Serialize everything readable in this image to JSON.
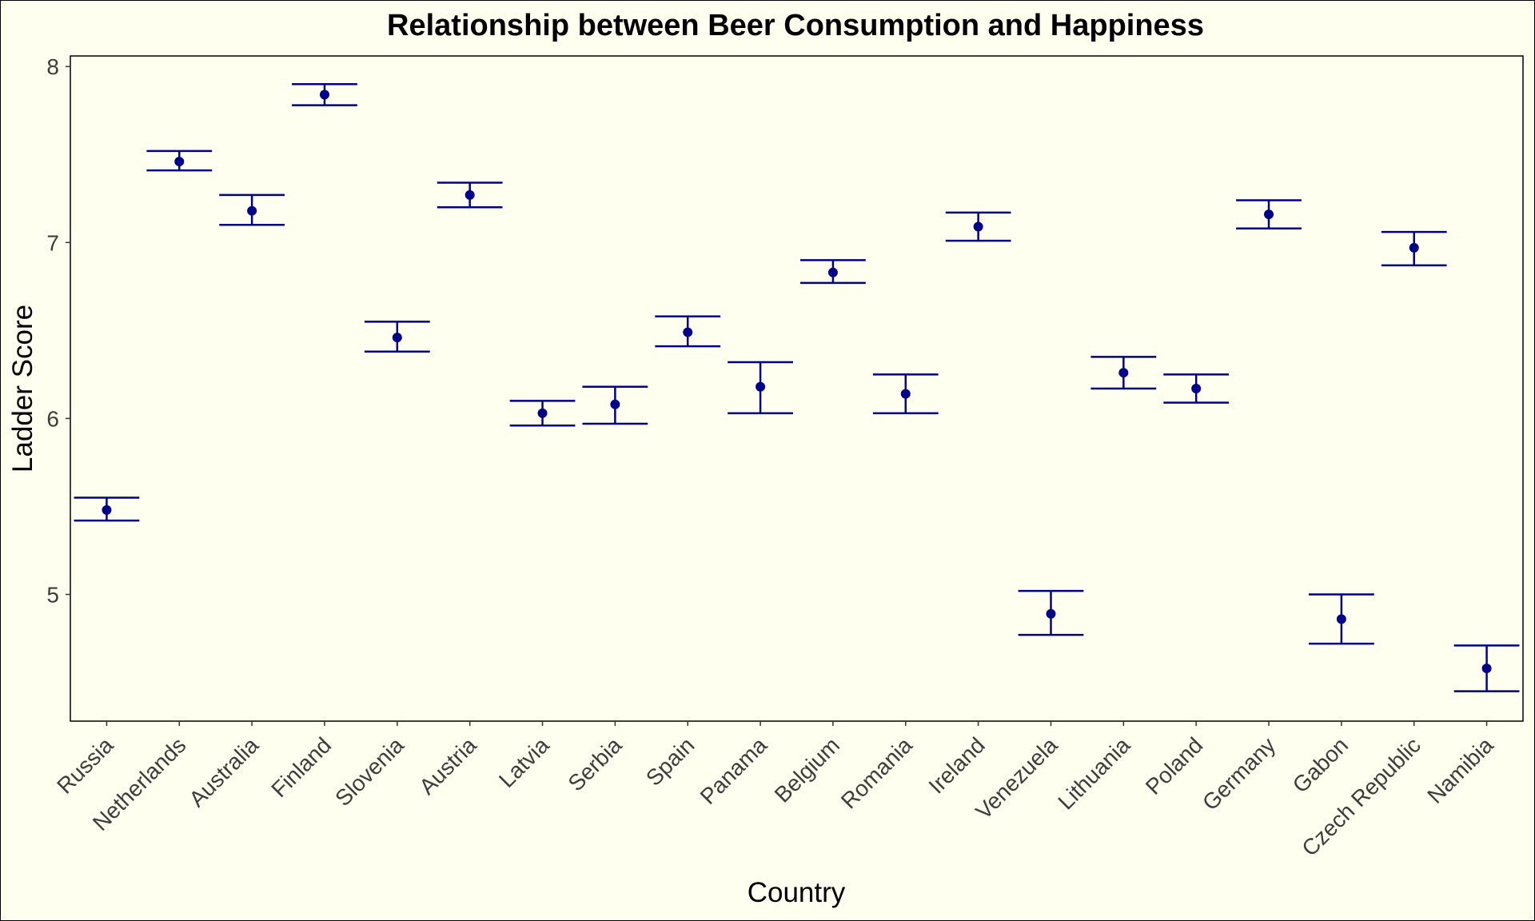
{
  "chart_data": {
    "type": "scatter",
    "title": "Relationship between Beer Consumption and Happiness",
    "xlabel": "Country",
    "ylabel": "Ladder Score",
    "ylim": [
      4.28,
      8.06
    ],
    "yticks": [
      5,
      6,
      7,
      8
    ],
    "grid": false,
    "categories": [
      "Russia",
      "Netherlands",
      "Australia",
      "Finland",
      "Slovenia",
      "Austria",
      "Latvia",
      "Serbia",
      "Spain",
      "Panama",
      "Belgium",
      "Romania",
      "Ireland",
      "Venezuela",
      "Lithuania",
      "Poland",
      "Germany",
      "Gabon",
      "Czech Republic",
      "Namibia"
    ],
    "series": [
      {
        "values": [
          5.48,
          7.46,
          7.18,
          7.84,
          6.46,
          7.27,
          6.03,
          6.08,
          6.49,
          6.18,
          6.83,
          6.14,
          7.09,
          4.89,
          6.26,
          6.17,
          7.16,
          4.86,
          6.97,
          4.58
        ],
        "lower": [
          5.42,
          7.41,
          7.1,
          7.78,
          6.38,
          7.2,
          5.96,
          5.97,
          6.41,
          6.03,
          6.77,
          6.03,
          7.01,
          4.77,
          6.17,
          6.09,
          7.08,
          4.72,
          6.87,
          4.45
        ],
        "upper": [
          5.55,
          7.52,
          7.27,
          7.9,
          6.55,
          7.34,
          6.1,
          6.18,
          6.58,
          6.32,
          6.9,
          6.25,
          7.17,
          5.02,
          6.35,
          6.25,
          7.24,
          5.0,
          7.06,
          4.71
        ]
      }
    ],
    "colors": {
      "marker": "#00008b",
      "errorbar": "#00008b",
      "background": "#fffff0"
    }
  }
}
